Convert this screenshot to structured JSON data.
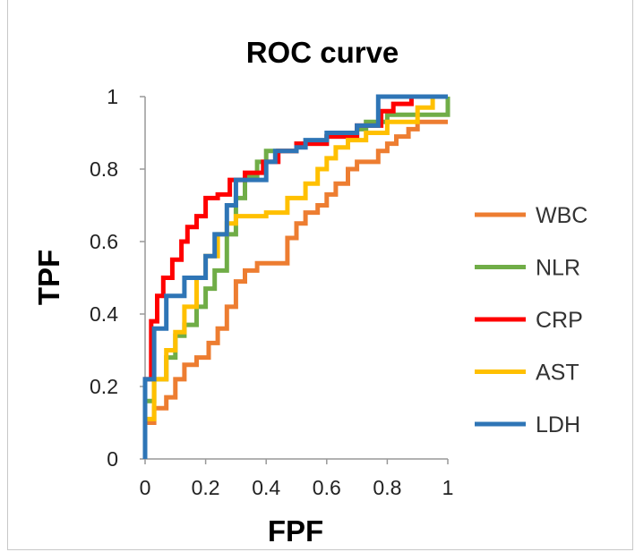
{
  "chart_data": {
    "type": "line",
    "title": "ROC curve",
    "xlabel": "FPF",
    "ylabel": "TPF",
    "xlim": [
      0,
      1
    ],
    "ylim": [
      0,
      1
    ],
    "xticks": [
      "0",
      "0.2",
      "0.4",
      "0.6",
      "0.8",
      "1"
    ],
    "yticks": [
      "0",
      "0.2",
      "0.4",
      "0.6",
      "0.8",
      "1"
    ],
    "grid": false,
    "legend_position": "right",
    "series": [
      {
        "name": "WBC",
        "color": "#ed7d31",
        "points": [
          [
            0,
            0
          ],
          [
            0,
            0.1
          ],
          [
            0.03,
            0.1
          ],
          [
            0.03,
            0.14
          ],
          [
            0.07,
            0.14
          ],
          [
            0.07,
            0.17
          ],
          [
            0.1,
            0.17
          ],
          [
            0.1,
            0.22
          ],
          [
            0.13,
            0.22
          ],
          [
            0.13,
            0.26
          ],
          [
            0.17,
            0.26
          ],
          [
            0.17,
            0.28
          ],
          [
            0.21,
            0.28
          ],
          [
            0.21,
            0.32
          ],
          [
            0.24,
            0.32
          ],
          [
            0.24,
            0.36
          ],
          [
            0.27,
            0.36
          ],
          [
            0.27,
            0.42
          ],
          [
            0.3,
            0.42
          ],
          [
            0.3,
            0.49
          ],
          [
            0.33,
            0.49
          ],
          [
            0.33,
            0.52
          ],
          [
            0.37,
            0.52
          ],
          [
            0.37,
            0.54
          ],
          [
            0.4,
            0.54
          ],
          [
            0.47,
            0.54
          ],
          [
            0.47,
            0.61
          ],
          [
            0.5,
            0.61
          ],
          [
            0.5,
            0.65
          ],
          [
            0.53,
            0.65
          ],
          [
            0.53,
            0.68
          ],
          [
            0.57,
            0.68
          ],
          [
            0.57,
            0.7
          ],
          [
            0.6,
            0.7
          ],
          [
            0.6,
            0.73
          ],
          [
            0.63,
            0.73
          ],
          [
            0.63,
            0.76
          ],
          [
            0.67,
            0.76
          ],
          [
            0.67,
            0.8
          ],
          [
            0.7,
            0.8
          ],
          [
            0.7,
            0.82
          ],
          [
            0.73,
            0.82
          ],
          [
            0.77,
            0.82
          ],
          [
            0.77,
            0.85
          ],
          [
            0.8,
            0.85
          ],
          [
            0.8,
            0.87
          ],
          [
            0.83,
            0.87
          ],
          [
            0.83,
            0.89
          ],
          [
            0.87,
            0.89
          ],
          [
            0.87,
            0.91
          ],
          [
            0.9,
            0.91
          ],
          [
            0.9,
            0.93
          ],
          [
            1,
            0.93
          ]
        ]
      },
      {
        "name": "NLR",
        "color": "#70ad47",
        "points": [
          [
            0,
            0
          ],
          [
            0,
            0.16
          ],
          [
            0.03,
            0.16
          ],
          [
            0.03,
            0.22
          ],
          [
            0.07,
            0.22
          ],
          [
            0.07,
            0.28
          ],
          [
            0.1,
            0.28
          ],
          [
            0.1,
            0.34
          ],
          [
            0.13,
            0.34
          ],
          [
            0.13,
            0.37
          ],
          [
            0.17,
            0.37
          ],
          [
            0.17,
            0.42
          ],
          [
            0.2,
            0.42
          ],
          [
            0.2,
            0.47
          ],
          [
            0.23,
            0.47
          ],
          [
            0.23,
            0.52
          ],
          [
            0.27,
            0.52
          ],
          [
            0.27,
            0.62
          ],
          [
            0.3,
            0.62
          ],
          [
            0.3,
            0.72
          ],
          [
            0.33,
            0.72
          ],
          [
            0.33,
            0.78
          ],
          [
            0.37,
            0.78
          ],
          [
            0.37,
            0.82
          ],
          [
            0.4,
            0.82
          ],
          [
            0.4,
            0.85
          ],
          [
            0.5,
            0.85
          ],
          [
            0.5,
            0.87
          ],
          [
            0.6,
            0.87
          ],
          [
            0.6,
            0.89
          ],
          [
            0.7,
            0.89
          ],
          [
            0.7,
            0.91
          ],
          [
            0.73,
            0.91
          ],
          [
            0.73,
            0.93
          ],
          [
            0.8,
            0.93
          ],
          [
            0.8,
            0.95
          ],
          [
            1,
            0.95
          ],
          [
            1,
            1
          ]
        ]
      },
      {
        "name": "CRP",
        "color": "#ff0000",
        "points": [
          [
            0,
            0
          ],
          [
            0,
            0.22
          ],
          [
            0.02,
            0.22
          ],
          [
            0.02,
            0.38
          ],
          [
            0.04,
            0.38
          ],
          [
            0.04,
            0.45
          ],
          [
            0.06,
            0.45
          ],
          [
            0.06,
            0.5
          ],
          [
            0.09,
            0.5
          ],
          [
            0.09,
            0.55
          ],
          [
            0.12,
            0.55
          ],
          [
            0.12,
            0.6
          ],
          [
            0.14,
            0.6
          ],
          [
            0.14,
            0.64
          ],
          [
            0.17,
            0.64
          ],
          [
            0.17,
            0.67
          ],
          [
            0.2,
            0.67
          ],
          [
            0.2,
            0.72
          ],
          [
            0.24,
            0.72
          ],
          [
            0.24,
            0.73
          ],
          [
            0.28,
            0.73
          ],
          [
            0.28,
            0.77
          ],
          [
            0.33,
            0.77
          ],
          [
            0.33,
            0.79
          ],
          [
            0.39,
            0.79
          ],
          [
            0.39,
            0.82
          ],
          [
            0.44,
            0.82
          ],
          [
            0.44,
            0.85
          ],
          [
            0.5,
            0.85
          ],
          [
            0.5,
            0.87
          ],
          [
            0.6,
            0.87
          ],
          [
            0.6,
            0.89
          ],
          [
            0.7,
            0.89
          ],
          [
            0.7,
            0.92
          ],
          [
            0.78,
            0.92
          ],
          [
            0.78,
            0.96
          ],
          [
            0.82,
            0.96
          ],
          [
            0.82,
            0.98
          ],
          [
            0.88,
            0.98
          ],
          [
            0.88,
            1
          ],
          [
            1,
            1
          ]
        ]
      },
      {
        "name": "AST",
        "color": "#ffc000",
        "points": [
          [
            0,
            0
          ],
          [
            0,
            0.11
          ],
          [
            0.03,
            0.11
          ],
          [
            0.03,
            0.22
          ],
          [
            0.07,
            0.22
          ],
          [
            0.07,
            0.3
          ],
          [
            0.1,
            0.3
          ],
          [
            0.1,
            0.35
          ],
          [
            0.13,
            0.35
          ],
          [
            0.13,
            0.42
          ],
          [
            0.17,
            0.42
          ],
          [
            0.17,
            0.5
          ],
          [
            0.2,
            0.5
          ],
          [
            0.2,
            0.56
          ],
          [
            0.24,
            0.56
          ],
          [
            0.24,
            0.62
          ],
          [
            0.27,
            0.62
          ],
          [
            0.27,
            0.65
          ],
          [
            0.3,
            0.65
          ],
          [
            0.3,
            0.67
          ],
          [
            0.4,
            0.67
          ],
          [
            0.4,
            0.68
          ],
          [
            0.47,
            0.68
          ],
          [
            0.47,
            0.72
          ],
          [
            0.53,
            0.72
          ],
          [
            0.53,
            0.76
          ],
          [
            0.57,
            0.76
          ],
          [
            0.57,
            0.8
          ],
          [
            0.6,
            0.8
          ],
          [
            0.6,
            0.83
          ],
          [
            0.63,
            0.83
          ],
          [
            0.63,
            0.86
          ],
          [
            0.67,
            0.86
          ],
          [
            0.67,
            0.88
          ],
          [
            0.73,
            0.88
          ],
          [
            0.73,
            0.9
          ],
          [
            0.8,
            0.9
          ],
          [
            0.8,
            0.93
          ],
          [
            0.9,
            0.93
          ],
          [
            0.9,
            0.97
          ],
          [
            0.95,
            0.97
          ],
          [
            0.95,
            1
          ],
          [
            1,
            1
          ]
        ]
      },
      {
        "name": "LDH",
        "color": "#2e75b6",
        "points": [
          [
            0,
            0
          ],
          [
            0,
            0.22
          ],
          [
            0.03,
            0.22
          ],
          [
            0.03,
            0.36
          ],
          [
            0.07,
            0.36
          ],
          [
            0.07,
            0.45
          ],
          [
            0.13,
            0.45
          ],
          [
            0.13,
            0.5
          ],
          [
            0.2,
            0.5
          ],
          [
            0.2,
            0.56
          ],
          [
            0.23,
            0.56
          ],
          [
            0.23,
            0.62
          ],
          [
            0.27,
            0.62
          ],
          [
            0.27,
            0.7
          ],
          [
            0.3,
            0.7
          ],
          [
            0.3,
            0.77
          ],
          [
            0.4,
            0.77
          ],
          [
            0.4,
            0.82
          ],
          [
            0.43,
            0.82
          ],
          [
            0.43,
            0.85
          ],
          [
            0.5,
            0.85
          ],
          [
            0.5,
            0.86
          ],
          [
            0.53,
            0.86
          ],
          [
            0.53,
            0.88
          ],
          [
            0.6,
            0.88
          ],
          [
            0.6,
            0.9
          ],
          [
            0.7,
            0.9
          ],
          [
            0.7,
            0.92
          ],
          [
            0.77,
            0.92
          ],
          [
            0.77,
            1
          ],
          [
            1,
            1
          ]
        ]
      }
    ]
  }
}
